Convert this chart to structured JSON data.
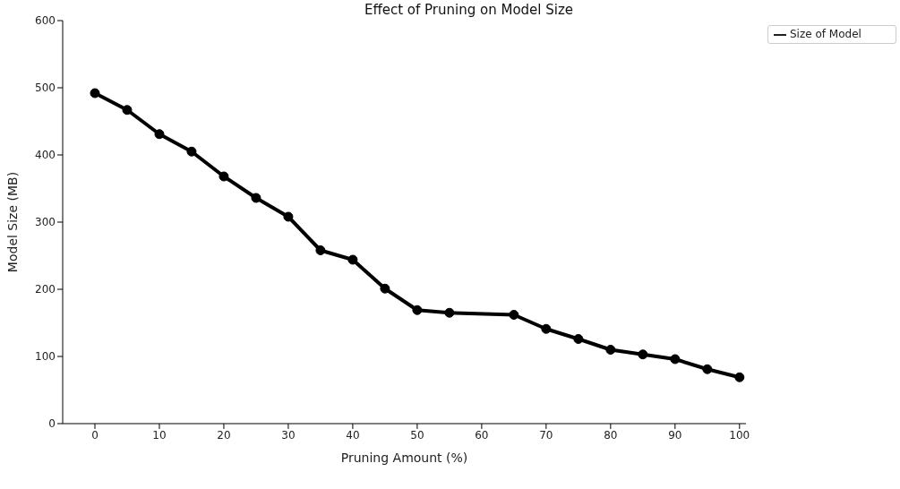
{
  "chart_data": {
    "type": "line",
    "title": "Effect of Pruning on Model Size",
    "xlabel": "Pruning Amount (%)",
    "ylabel": "Model Size (MB)",
    "x": [
      0,
      5,
      10,
      15,
      20,
      25,
      30,
      35,
      40,
      45,
      50,
      55,
      65,
      70,
      75,
      80,
      85,
      90,
      95,
      100
    ],
    "series": [
      {
        "name": "Size of Model",
        "color": "#000000",
        "values": [
          492,
          467,
          431,
          405,
          368,
          336,
          308,
          258,
          244,
          201,
          169,
          165,
          162,
          141,
          126,
          110,
          103,
          96,
          81,
          69
        ]
      }
    ],
    "xlim": [
      -5,
      101
    ],
    "xticks": [
      0,
      10,
      20,
      30,
      40,
      50,
      60,
      70,
      80,
      90,
      100
    ],
    "ylim": [
      0,
      600
    ],
    "yticks": [
      0,
      100,
      200,
      300,
      400,
      500,
      600
    ],
    "grid": false,
    "legend": "top right",
    "marker": "circle",
    "line_style": "solid"
  }
}
